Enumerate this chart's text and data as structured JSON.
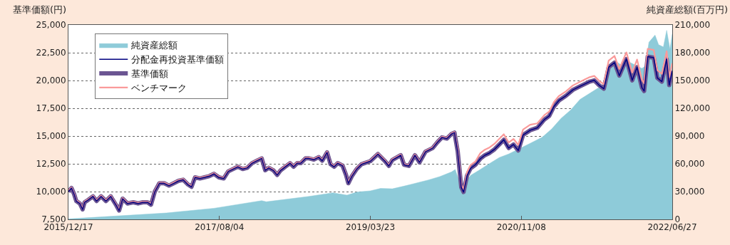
{
  "chart_data": {
    "type": "line",
    "ylabel": "基準価額(円)",
    "y2label": "純資産総額(百万円)",
    "ylim": [
      7500,
      25000
    ],
    "yticks": [
      {
        "value": 7500,
        "label": "7,500"
      },
      {
        "value": 10000,
        "label": "10,000"
      },
      {
        "value": 12500,
        "label": "12,500"
      },
      {
        "value": 15000,
        "label": "15,000"
      },
      {
        "value": 17500,
        "label": "17,500"
      },
      {
        "value": 20000,
        "label": "20,000"
      },
      {
        "value": 22500,
        "label": "22,500"
      },
      {
        "value": 25000,
        "label": "25,000"
      }
    ],
    "y2lim": [
      0,
      210000
    ],
    "y2ticks": [
      0,
      {
        "value": 30000,
        "label": "30,000"
      },
      {
        "value": 60000,
        "label": "60,000"
      },
      {
        "value": 90000,
        "label": "90,000"
      },
      {
        "value": 120000,
        "label": "120,000"
      },
      {
        "value": 150000,
        "label": "150,000"
      },
      {
        "value": 180000,
        "label": "180,000"
      },
      {
        "value": 210000,
        "label": "210,000"
      }
    ],
    "xlim": [
      "2015-12-17",
      "2022-06-27"
    ],
    "xticks": [
      {
        "value": "2015-12-17",
        "label": "2015/12/17"
      },
      {
        "value": "2017-08-04",
        "label": "2017/08/04"
      },
      {
        "value": "2019-03-23",
        "label": "2019/03/23"
      },
      {
        "value": "2020-11-08",
        "label": "2020/11/08"
      },
      {
        "value": "2022-06-27",
        "label": "2022/06/27"
      }
    ],
    "grid": "y",
    "legend": "top left",
    "x": [
      "2015-12-17",
      "2015-12-29",
      "2016-01-08",
      "2016-01-17",
      "2016-01-31",
      "2016-02-11",
      "2016-02-19",
      "2016-03-04",
      "2016-03-23",
      "2016-04-06",
      "2016-04-24",
      "2016-05-13",
      "2016-06-01",
      "2016-06-24",
      "2016-07-04",
      "2016-07-18",
      "2016-08-06",
      "2016-08-29",
      "2016-09-17",
      "2016-10-06",
      "2016-10-24",
      "2016-11-07",
      "2016-11-22",
      "2016-12-10",
      "2016-12-29",
      "2017-01-17",
      "2017-02-05",
      "2017-02-23",
      "2017-03-14",
      "2017-04-02",
      "2017-04-16",
      "2017-04-30",
      "2017-05-19",
      "2017-06-06",
      "2017-06-25",
      "2017-07-14",
      "2017-08-02",
      "2017-08-21",
      "2017-09-08",
      "2017-09-27",
      "2017-10-16",
      "2017-11-04",
      "2017-11-22",
      "2017-12-11",
      "2017-12-30",
      "2018-01-18",
      "2018-02-01",
      "2018-02-15",
      "2018-03-05",
      "2018-03-20",
      "2018-04-03",
      "2018-04-21",
      "2018-05-10",
      "2018-05-24",
      "2018-06-07",
      "2018-06-21",
      "2018-07-10",
      "2018-07-24",
      "2018-08-12",
      "2018-08-31",
      "2018-09-14",
      "2018-10-03",
      "2018-10-17",
      "2018-10-31",
      "2018-11-14",
      "2018-12-03",
      "2018-12-17",
      "2018-12-26",
      "2019-01-09",
      "2019-01-28",
      "2019-02-16",
      "2019-03-23",
      "2019-04-22",
      "2019-05-20",
      "2019-06-04",
      "2019-06-18",
      "2019-07-21",
      "2019-08-03",
      "2019-08-22",
      "2019-09-15",
      "2019-10-03",
      "2019-10-27",
      "2019-11-24",
      "2019-12-13",
      "2019-12-31",
      "2020-01-19",
      "2020-02-07",
      "2020-02-18",
      "2020-03-02",
      "2020-03-16",
      "2020-03-25",
      "2020-04-08",
      "2020-04-22",
      "2020-05-11",
      "2020-05-30",
      "2020-06-17",
      "2020-07-06",
      "2020-07-25",
      "2020-08-13",
      "2020-08-31",
      "2020-09-19",
      "2020-10-08",
      "2020-10-27",
      "2020-11-15",
      "2020-12-13",
      "2021-01-10",
      "2021-02-07",
      "2021-02-26",
      "2021-03-17",
      "2021-04-05",
      "2021-05-03",
      "2021-05-31",
      "2021-06-28",
      "2021-07-17",
      "2021-08-05",
      "2021-08-23",
      "2021-09-11",
      "2021-09-30",
      "2021-10-19",
      "2021-11-11",
      "2021-11-30",
      "2021-12-28",
      "2022-01-20",
      "2022-02-08",
      "2022-02-27",
      "2022-03-08",
      "2022-03-22",
      "2022-04-15",
      "2022-04-29",
      "2022-05-17",
      "2022-06-05",
      "2022-06-15",
      "2022-06-27"
    ],
    "series": [
      {
        "name": "純資産総額",
        "type": "area",
        "axis": "y2",
        "color": "#8ecbd9",
        "x": [
          "2015-12-17",
          "2016-07-04",
          "2017-01-07",
          "2017-07-14",
          "2018-01-18",
          "2018-02-05",
          "2018-07-24",
          "2018-10-26",
          "2018-12-21",
          "2019-01-28",
          "2019-03-23",
          "2019-05-02",
          "2019-06-18",
          "2019-08-03",
          "2019-09-10",
          "2019-11-05",
          "2019-12-22",
          "2020-02-07",
          "2020-02-21",
          "2020-03-16",
          "2020-03-25",
          "2020-04-22",
          "2020-05-30",
          "2020-07-06",
          "2020-08-13",
          "2020-09-19",
          "2020-11-05",
          "2020-12-13",
          "2021-01-29",
          "2021-03-08",
          "2021-04-14",
          "2021-05-22",
          "2021-06-28",
          "2021-08-05",
          "2021-09-11",
          "2021-09-30",
          "2021-10-19",
          "2021-11-16",
          "2021-12-14",
          "2022-01-02",
          "2022-01-30",
          "2022-02-27",
          "2022-03-13",
          "2022-03-27",
          "2022-04-20",
          "2022-05-04",
          "2022-05-23",
          "2022-06-05",
          "2022-06-18",
          "2022-06-27"
        ],
        "values": [
          500,
          3800,
          6900,
          12000,
          20200,
          19000,
          24800,
          28700,
          26100,
          29500,
          30800,
          33400,
          33000,
          35900,
          38500,
          42400,
          46200,
          51300,
          53900,
          34700,
          37300,
          47500,
          53900,
          60300,
          66800,
          70600,
          77000,
          82100,
          88600,
          97600,
          109100,
          118100,
          129600,
          136100,
          142500,
          141000,
          160400,
          170700,
          165600,
          170700,
          166900,
          163000,
          165600,
          191300,
          199000,
          188700,
          186200,
          204100,
          183600,
          200300
        ]
      },
      {
        "name": "分配金再投資基準価額",
        "color": "#000080",
        "values": [
          10000,
          10320,
          9790,
          9150,
          8930,
          8400,
          9040,
          9250,
          9570,
          9150,
          9570,
          9150,
          9570,
          8720,
          8290,
          9360,
          8930,
          9040,
          8930,
          9040,
          9040,
          8820,
          10000,
          10750,
          10750,
          10540,
          10750,
          10960,
          11070,
          10640,
          10430,
          11280,
          11180,
          11280,
          11390,
          11600,
          11280,
          11180,
          11820,
          12030,
          12240,
          12030,
          12140,
          12560,
          12780,
          12990,
          11920,
          12140,
          11920,
          11500,
          11920,
          12240,
          12560,
          12240,
          12560,
          12560,
          12990,
          12990,
          12880,
          13100,
          12780,
          13530,
          12460,
          12240,
          12560,
          12350,
          11500,
          10750,
          11390,
          12030,
          12460,
          12740,
          13380,
          12740,
          12310,
          12850,
          13270,
          12420,
          12310,
          13270,
          12630,
          13600,
          13920,
          14450,
          14880,
          14770,
          15200,
          15310,
          13600,
          10390,
          9960,
          11460,
          12100,
          12420,
          12950,
          13270,
          13480,
          13800,
          14240,
          14660,
          13920,
          14240,
          13700,
          15090,
          15520,
          15740,
          16480,
          16800,
          17660,
          18190,
          18620,
          19160,
          19480,
          19690,
          19900,
          20010,
          19580,
          19260,
          21190,
          21610,
          20440,
          21930,
          20010,
          21190,
          19370,
          19050,
          22150,
          22050,
          20230,
          19900,
          21930,
          19580,
          20860
        ]
      },
      {
        "name": "基準価額",
        "color": "#6b5592",
        "values": [
          10000,
          10320,
          9790,
          9150,
          8930,
          8400,
          9040,
          9250,
          9570,
          9150,
          9570,
          9150,
          9570,
          8720,
          8290,
          9360,
          8930,
          9040,
          8930,
          9040,
          9040,
          8820,
          10000,
          10750,
          10750,
          10540,
          10750,
          10960,
          11070,
          10640,
          10430,
          11280,
          11180,
          11280,
          11390,
          11600,
          11280,
          11180,
          11820,
          12030,
          12240,
          12030,
          12140,
          12560,
          12780,
          12990,
          11920,
          12140,
          11920,
          11500,
          11920,
          12240,
          12560,
          12240,
          12560,
          12560,
          12990,
          12990,
          12880,
          13100,
          12780,
          13530,
          12460,
          12240,
          12560,
          12350,
          11500,
          10750,
          11390,
          12030,
          12460,
          12740,
          13380,
          12740,
          12310,
          12850,
          13270,
          12420,
          12310,
          13270,
          12630,
          13600,
          13920,
          14450,
          14880,
          14770,
          15200,
          15310,
          13600,
          10390,
          9960,
          11460,
          12100,
          12420,
          12950,
          13270,
          13480,
          13800,
          14240,
          14660,
          13920,
          14240,
          13700,
          15090,
          15520,
          15740,
          16480,
          16800,
          17660,
          18190,
          18620,
          19160,
          19480,
          19690,
          19900,
          20010,
          19580,
          19260,
          21190,
          21610,
          20440,
          21930,
          20010,
          21190,
          19370,
          19050,
          22150,
          22050,
          20230,
          19900,
          21930,
          19580,
          20860
        ]
      },
      {
        "name": "ベンチマーク",
        "color": "#fa9a9a",
        "values": [
          10060,
          10380,
          9850,
          9210,
          8990,
          8460,
          9100,
          9310,
          9630,
          9210,
          9630,
          9210,
          9630,
          8780,
          8350,
          9420,
          8990,
          9100,
          8990,
          9100,
          9100,
          8880,
          10060,
          10810,
          10810,
          10600,
          10810,
          11020,
          11130,
          10700,
          10490,
          11340,
          11240,
          11340,
          11450,
          11660,
          11340,
          11240,
          11880,
          12090,
          12300,
          12090,
          12200,
          12620,
          12840,
          13050,
          11980,
          12200,
          11980,
          11560,
          11980,
          12300,
          12620,
          12300,
          12620,
          12620,
          13050,
          13050,
          12940,
          13160,
          12840,
          13590,
          12520,
          12300,
          12620,
          12410,
          11560,
          10810,
          11450,
          12090,
          12520,
          12800,
          13440,
          12800,
          12370,
          12910,
          13330,
          12480,
          12370,
          13330,
          12690,
          13660,
          13980,
          14510,
          14940,
          14830,
          15260,
          15370,
          13800,
          10590,
          10160,
          11760,
          12400,
          12720,
          13450,
          13770,
          13980,
          14300,
          14740,
          15160,
          14420,
          14740,
          14200,
          15590,
          16020,
          16140,
          16880,
          17200,
          18060,
          18590,
          19020,
          19560,
          19880,
          20090,
          20300,
          20410,
          19980,
          19660,
          21790,
          22210,
          21040,
          22530,
          20710,
          21890,
          20070,
          19750,
          22850,
          22750,
          20930,
          20600,
          22630,
          20280,
          21560
        ]
      }
    ]
  }
}
